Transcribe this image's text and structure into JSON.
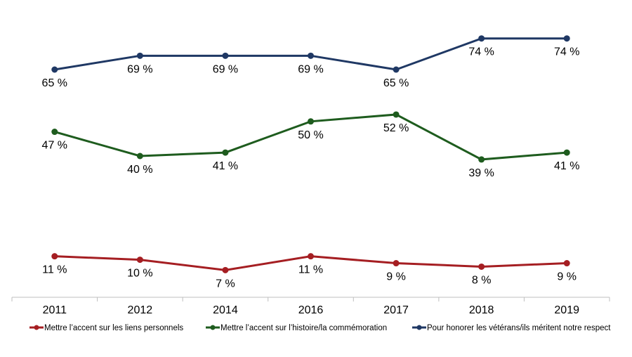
{
  "chart_data": {
    "type": "line",
    "title": "",
    "xlabel": "",
    "ylabel": "",
    "categories": [
      "2011",
      "2012",
      "2014",
      "2016",
      "2017",
      "2018",
      "2019"
    ],
    "value_suffix": " %",
    "grid": false,
    "legend_position": "bottom",
    "series": [
      {
        "name": "Mettre l’accent sur les liens personnels",
        "color": "#a51e22",
        "values": [
          11,
          10,
          7,
          11,
          9,
          8,
          9
        ]
      },
      {
        "name": "Mettre l’accent sur l’histoire/la commémoration",
        "color": "#1e5c1e",
        "values": [
          47,
          40,
          41,
          50,
          52,
          39,
          41
        ]
      },
      {
        "name": "Pour honorer les vétérans/ils méritent notre respect",
        "color": "#1f3864",
        "values": [
          65,
          69,
          69,
          69,
          65,
          74,
          74
        ]
      }
    ]
  }
}
